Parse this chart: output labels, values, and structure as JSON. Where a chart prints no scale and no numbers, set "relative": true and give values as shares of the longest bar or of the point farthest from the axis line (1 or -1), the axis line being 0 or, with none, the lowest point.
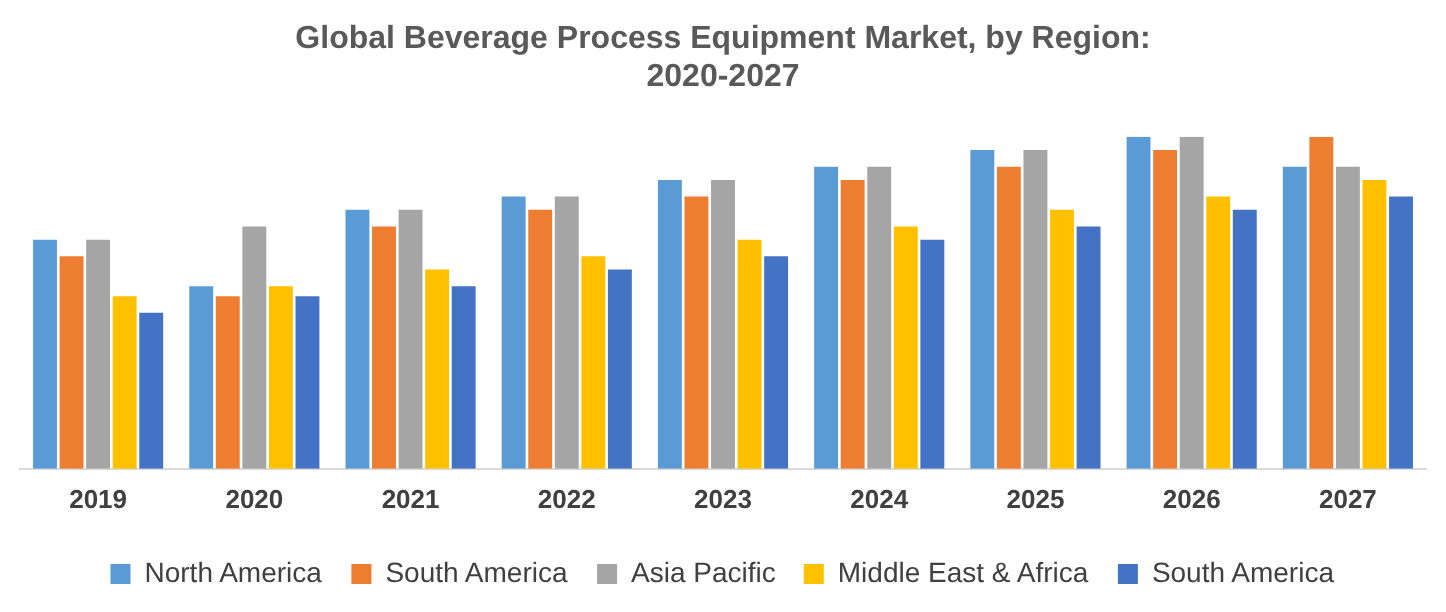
{
  "chart_data": {
    "type": "bar",
    "title": "Global Beverage Process Equipment Market, by Region:\n2020-2027",
    "relative": true,
    "grid": false,
    "legend": "bottom",
    "categories": [
      "2019",
      "2020",
      "2021",
      "2022",
      "2023",
      "2024",
      "2025",
      "2026",
      "2027"
    ],
    "series": [
      {
        "name": "North America",
        "color": "#5b9bd5",
        "values": [
          0.69,
          0.55,
          0.78,
          0.82,
          0.87,
          0.91,
          0.96,
          1,
          0.91
        ]
      },
      {
        "name": "South America",
        "color": "#ed7d31",
        "values": [
          0.64,
          0.52,
          0.73,
          0.78,
          0.82,
          0.87,
          0.91,
          0.96,
          1
        ]
      },
      {
        "name": "Asia Pacific",
        "color": "#a5a5a5",
        "values": [
          0.69,
          0.73,
          0.78,
          0.82,
          0.87,
          0.91,
          0.96,
          1,
          0.91
        ]
      },
      {
        "name": "Middle East & Africa",
        "color": "#ffc000",
        "values": [
          0.52,
          0.55,
          0.6,
          0.64,
          0.69,
          0.73,
          0.78,
          0.82,
          0.87
        ]
      },
      {
        "name": "South America",
        "color": "#4472c4",
        "values": [
          0.47,
          0.52,
          0.55,
          0.6,
          0.64,
          0.69,
          0.73,
          0.78,
          0.82
        ]
      }
    ]
  }
}
